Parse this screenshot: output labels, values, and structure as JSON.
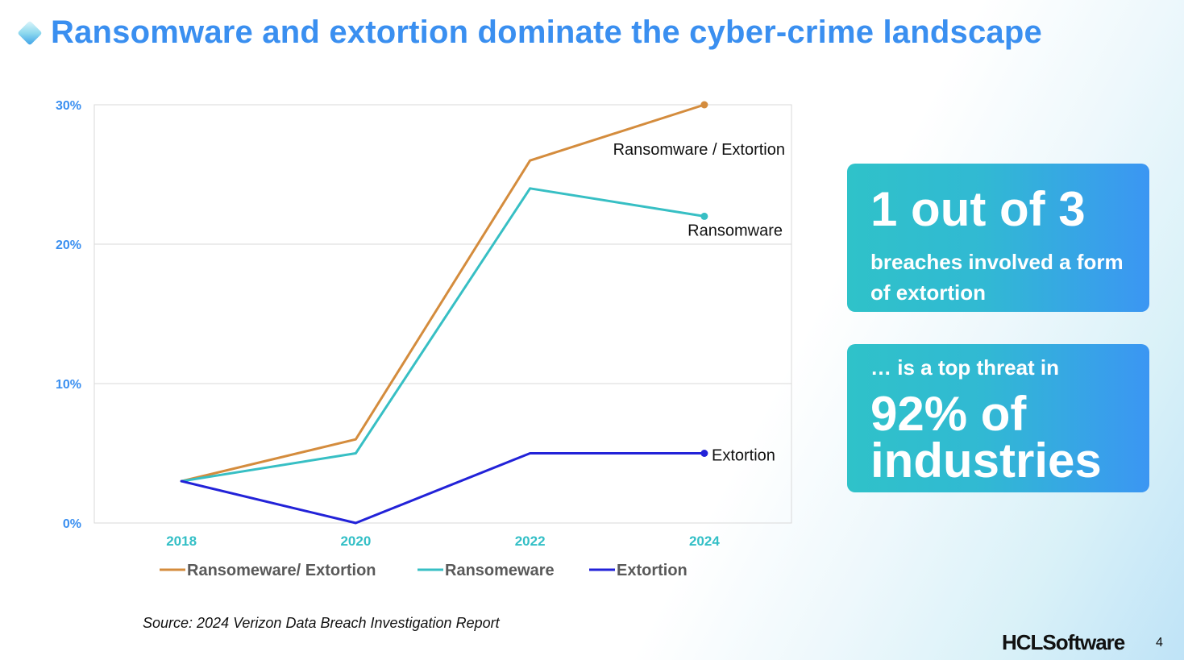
{
  "title": "Ransomware and extortion dominate the cyber-crime landscape",
  "chart_data": {
    "type": "line",
    "x": [
      "2018",
      "2020",
      "2022",
      "2024"
    ],
    "y_ticks": [
      "0%",
      "10%",
      "20%",
      "30%"
    ],
    "ylim": [
      0,
      30
    ],
    "grid": true,
    "legend_position": "bottom",
    "series": [
      {
        "name": "Ransomeware/ Extortion",
        "label": "Ransomware / Extortion",
        "values": [
          3,
          6,
          26,
          30
        ],
        "color": "#d48c3d"
      },
      {
        "name": "Ransomeware",
        "label": "Ransomware",
        "values": [
          3,
          5,
          24,
          22
        ],
        "color": "#37bfc4"
      },
      {
        "name": "Extortion",
        "label": "Extortion",
        "values": [
          3,
          0,
          5,
          5
        ],
        "color": "#2222d8"
      }
    ]
  },
  "card1": {
    "big": "1 out of 3",
    "small": "breaches involved a form of extortion"
  },
  "card2": {
    "small": "… is a top threat in",
    "big": "92% of industries"
  },
  "source": "Source: 2024 Verizon Data Breach Investigation Report",
  "brand": "HCLSoftware",
  "page_number": "4"
}
